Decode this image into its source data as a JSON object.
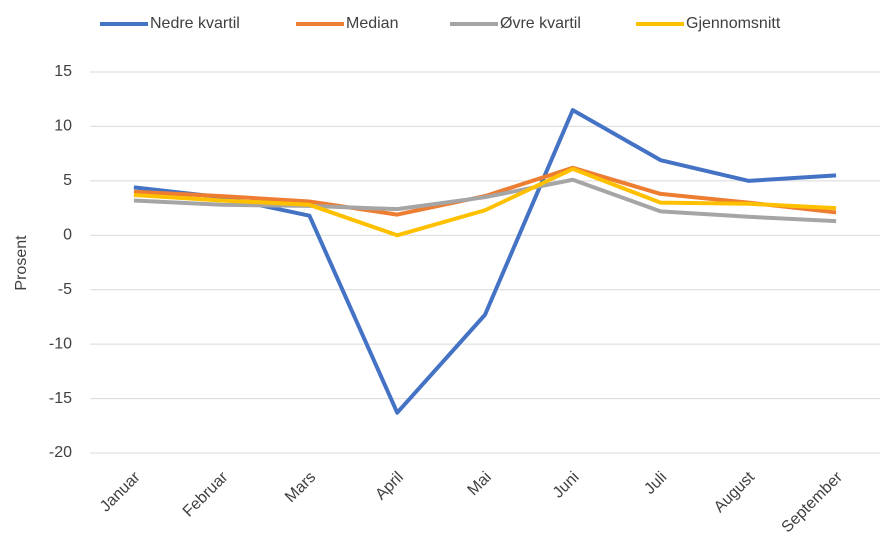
{
  "chart_data": {
    "type": "line",
    "y_label": "Prosent",
    "categories": [
      "Januar",
      "Februar",
      "Mars",
      "April",
      "Mai",
      "Juni",
      "Juli",
      "August",
      "September"
    ],
    "series": [
      {
        "name": "Nedre kvartil",
        "color": "#4472c4",
        "values": [
          4.4,
          3.5,
          1.8,
          -16.3,
          -7.3,
          11.5,
          6.9,
          5.0,
          5.5
        ]
      },
      {
        "name": "Median",
        "color": "#ed7d31",
        "values": [
          4.0,
          3.6,
          3.1,
          1.9,
          3.6,
          6.2,
          3.8,
          3.0,
          2.1
        ]
      },
      {
        "name": "Øvre kvartil",
        "color": "#a5a5a5",
        "values": [
          3.2,
          2.8,
          2.7,
          2.4,
          3.5,
          5.1,
          2.2,
          1.7,
          1.3
        ]
      },
      {
        "name": "Gjennomsnitt",
        "color": "#ffc000",
        "values": [
          3.7,
          3.2,
          2.8,
          0.0,
          2.3,
          6.1,
          3.0,
          2.9,
          2.5
        ]
      }
    ],
    "ylim": [
      -20,
      15
    ],
    "yticks": [
      -20,
      -15,
      -10,
      -5,
      0,
      5,
      10,
      15
    ],
    "grid": true,
    "legend": "top"
  }
}
